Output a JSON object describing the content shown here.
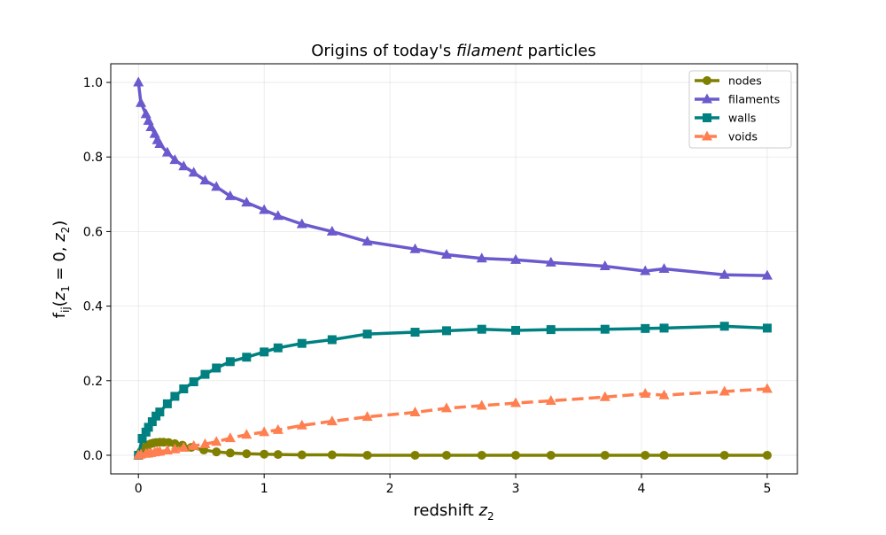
{
  "chart_data": {
    "type": "line",
    "title_plain": "Origins of today's ",
    "title_emph": "filament",
    "title_tail": " particles",
    "xlabel_plain": "redshift ",
    "xlabel_var": "z",
    "xlabel_sub": "2",
    "ylabel_f": "f",
    "ylabel_sub": "ij",
    "ylabel_open": "(",
    "ylabel_z1": "z",
    "ylabel_z1sub": "1",
    "ylabel_eq": " = 0, ",
    "ylabel_z2": "z",
    "ylabel_z2sub": "2",
    "ylabel_close": ")",
    "xlim": [
      -0.22,
      5.24
    ],
    "ylim": [
      -0.05,
      1.05
    ],
    "xticks": [
      0,
      1,
      2,
      3,
      4,
      5
    ],
    "xtick_labels": [
      "0",
      "1",
      "2",
      "3",
      "4",
      "5"
    ],
    "yticks": [
      0.0,
      0.2,
      0.4,
      0.6,
      0.8,
      1.0
    ],
    "ytick_labels": [
      "0.0",
      "0.2",
      "0.4",
      "0.6",
      "0.8",
      "1.0"
    ],
    "grid": true,
    "legend_position": "top-right",
    "series": [
      {
        "name": "nodes",
        "color": "#808000",
        "marker": "circle",
        "linestyle": "solid",
        "x": [
          0.0,
          0.02,
          0.04,
          0.06,
          0.08,
          0.1,
          0.12,
          0.14,
          0.17,
          0.2,
          0.24,
          0.29,
          0.35,
          0.42,
          0.52,
          0.62,
          0.73,
          0.86,
          1.0,
          1.11,
          1.3,
          1.54,
          1.82,
          2.2,
          2.45,
          2.73,
          3.0,
          3.28,
          3.71,
          4.03,
          4.18,
          4.66,
          5.0
        ],
        "values": [
          0.0,
          0.01,
          0.018,
          0.024,
          0.028,
          0.031,
          0.033,
          0.034,
          0.035,
          0.035,
          0.034,
          0.031,
          0.027,
          0.021,
          0.014,
          0.009,
          0.006,
          0.004,
          0.003,
          0.002,
          0.001,
          0.001,
          0.0,
          0.0,
          0.0,
          0.0,
          0.0,
          0.0,
          0.0,
          0.0,
          0.0,
          0.0,
          0.0
        ]
      },
      {
        "name": "filaments",
        "color": "#6a5acd",
        "marker": "triangle",
        "linestyle": "solid",
        "x": [
          0.0,
          0.02,
          0.06,
          0.08,
          0.1,
          0.13,
          0.15,
          0.17,
          0.23,
          0.29,
          0.36,
          0.44,
          0.53,
          0.62,
          0.73,
          0.86,
          1.0,
          1.11,
          1.3,
          1.54,
          1.82,
          2.2,
          2.45,
          2.73,
          3.0,
          3.28,
          3.71,
          4.03,
          4.18,
          4.66,
          5.0
        ],
        "values": [
          1.0,
          0.945,
          0.915,
          0.897,
          0.88,
          0.862,
          0.845,
          0.835,
          0.812,
          0.792,
          0.775,
          0.758,
          0.737,
          0.72,
          0.695,
          0.678,
          0.658,
          0.642,
          0.62,
          0.6,
          0.573,
          0.553,
          0.538,
          0.528,
          0.524,
          0.517,
          0.507,
          0.494,
          0.5,
          0.484,
          0.482
        ]
      },
      {
        "name": "walls",
        "color": "#008080",
        "marker": "square",
        "linestyle": "solid",
        "x": [
          0.0,
          0.03,
          0.06,
          0.08,
          0.11,
          0.14,
          0.17,
          0.23,
          0.29,
          0.36,
          0.44,
          0.53,
          0.62,
          0.73,
          0.86,
          1.0,
          1.11,
          1.3,
          1.54,
          1.82,
          2.2,
          2.45,
          2.73,
          3.0,
          3.28,
          3.71,
          4.03,
          4.18,
          4.66,
          5.0
        ],
        "values": [
          0.0,
          0.045,
          0.062,
          0.075,
          0.09,
          0.105,
          0.116,
          0.138,
          0.158,
          0.178,
          0.197,
          0.217,
          0.234,
          0.251,
          0.263,
          0.277,
          0.288,
          0.3,
          0.31,
          0.325,
          0.33,
          0.334,
          0.338,
          0.335,
          0.337,
          0.338,
          0.34,
          0.341,
          0.346,
          0.341
        ]
      },
      {
        "name": "voids",
        "color": "#ff7f50",
        "marker": "triangle",
        "linestyle": "dashed",
        "x": [
          0.0,
          0.02,
          0.06,
          0.08,
          0.1,
          0.13,
          0.15,
          0.17,
          0.23,
          0.29,
          0.36,
          0.44,
          0.53,
          0.62,
          0.73,
          0.86,
          1.0,
          1.11,
          1.3,
          1.54,
          1.82,
          2.2,
          2.45,
          2.73,
          3.0,
          3.28,
          3.71,
          4.03,
          4.18,
          4.66,
          5.0
        ],
        "values": [
          0.0,
          0.002,
          0.004,
          0.005,
          0.006,
          0.008,
          0.009,
          0.01,
          0.013,
          0.016,
          0.02,
          0.025,
          0.03,
          0.036,
          0.046,
          0.055,
          0.062,
          0.068,
          0.08,
          0.091,
          0.103,
          0.115,
          0.126,
          0.133,
          0.14,
          0.146,
          0.156,
          0.165,
          0.161,
          0.171,
          0.178
        ]
      }
    ]
  }
}
